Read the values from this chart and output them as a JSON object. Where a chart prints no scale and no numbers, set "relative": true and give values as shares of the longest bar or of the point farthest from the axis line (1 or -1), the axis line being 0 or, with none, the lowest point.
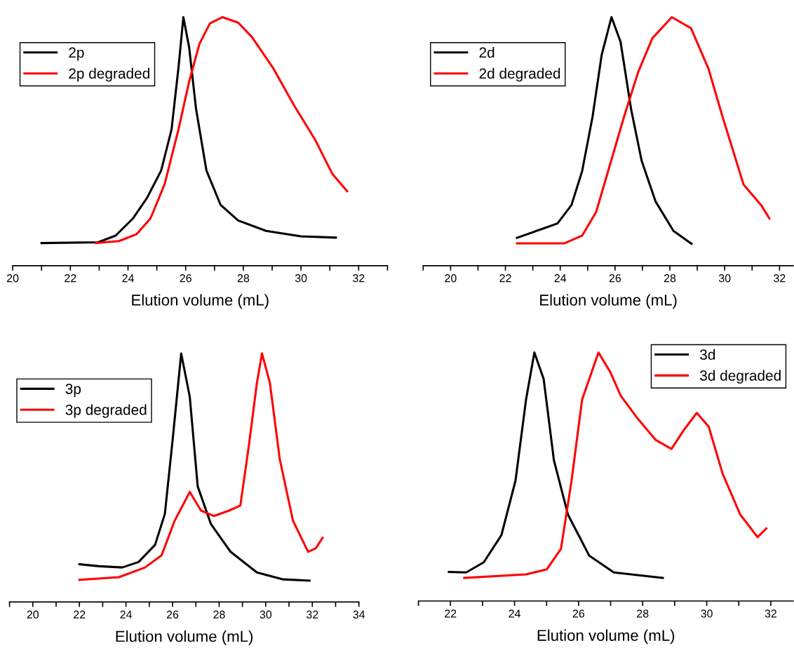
{
  "chart_data": [
    {
      "type": "line",
      "relative": true,
      "xlabel": "Elution volume (mL)",
      "xlim": [
        20,
        33
      ],
      "xticks": [
        20,
        {
          "value": 21,
          "label": null
        },
        22,
        {
          "value": 23,
          "label": null
        },
        24,
        {
          "value": 25,
          "label": null
        },
        26,
        {
          "value": 27,
          "label": null
        },
        28,
        {
          "value": 29,
          "label": null
        },
        30,
        {
          "value": 31,
          "label": null
        },
        32,
        {
          "value": 33,
          "label": null
        }
      ],
      "legend": "top left",
      "grid": false,
      "tick_labels": "x",
      "series": [
        {
          "name": "2p",
          "color": "#000000",
          "x": [
            21.0,
            22.96,
            23.57,
            24.17,
            24.66,
            25.15,
            25.51,
            25.75,
            25.92,
            26.12,
            26.36,
            26.72,
            27.21,
            27.82,
            28.79,
            30.0,
            31.21
          ],
          "values": [
            0.091,
            0.094,
            0.121,
            0.19,
            0.273,
            0.383,
            0.548,
            0.796,
            1.0,
            0.879,
            0.631,
            0.383,
            0.245,
            0.182,
            0.14,
            0.118,
            0.113
          ]
        },
        {
          "name": "2p degraded",
          "color": "#ff0000",
          "x": [
            22.89,
            23.69,
            24.3,
            24.78,
            25.27,
            25.75,
            26.12,
            26.48,
            26.84,
            27.28,
            27.82,
            28.3,
            29.03,
            29.76,
            30.49,
            31.09,
            31.6
          ],
          "values": [
            0.091,
            0.099,
            0.127,
            0.19,
            0.328,
            0.548,
            0.741,
            0.893,
            0.975,
            1.0,
            0.978,
            0.92,
            0.796,
            0.645,
            0.507,
            0.369,
            0.3
          ]
        }
      ]
    },
    {
      "type": "line",
      "relative": true,
      "xlabel": "Elution volume (mL)",
      "xlim": [
        19,
        32.5
      ],
      "xticks": [
        {
          "value": 19,
          "label": null
        },
        20,
        {
          "value": 21,
          "label": null
        },
        22,
        {
          "value": 23,
          "label": null
        },
        24,
        {
          "value": 25,
          "label": null
        },
        26,
        {
          "value": 27,
          "label": null
        },
        28,
        {
          "value": 29,
          "label": null
        },
        30,
        {
          "value": 31,
          "label": null
        },
        32
      ],
      "legend": "top left",
      "grid": false,
      "tick_labels": "x",
      "series": [
        {
          "name": "2d",
          "color": "#000000",
          "x": [
            22.42,
            23.26,
            23.9,
            24.41,
            24.8,
            25.18,
            25.51,
            25.87,
            26.2,
            26.59,
            26.97,
            27.48,
            28.13,
            28.79
          ],
          "values": [
            0.112,
            0.145,
            0.17,
            0.244,
            0.381,
            0.6,
            0.847,
            1.0,
            0.901,
            0.627,
            0.422,
            0.258,
            0.14,
            0.088
          ]
        },
        {
          "name": "2d degraded",
          "color": "#ff0000",
          "x": [
            22.42,
            24.16,
            24.8,
            25.31,
            25.82,
            26.33,
            26.84,
            27.36,
            28.07,
            28.77,
            29.41,
            29.92,
            30.69,
            31.33,
            31.63
          ],
          "values": [
            0.09,
            0.09,
            0.121,
            0.216,
            0.408,
            0.6,
            0.778,
            0.915,
            1.0,
            0.956,
            0.792,
            0.6,
            0.326,
            0.244,
            0.19
          ]
        }
      ]
    },
    {
      "type": "line",
      "relative": true,
      "xlabel": "Elution volume (mL)",
      "xlim": [
        19,
        34
      ],
      "xticks": [
        {
          "value": 19,
          "label": null
        },
        20,
        {
          "value": 21,
          "label": null
        },
        22,
        {
          "value": 23,
          "label": null
        },
        24,
        {
          "value": 25,
          "label": null
        },
        26,
        {
          "value": 27,
          "label": null
        },
        28,
        {
          "value": 29,
          "label": null
        },
        30,
        {
          "value": 31,
          "label": null
        },
        32,
        {
          "value": 33,
          "label": null
        },
        34
      ],
      "legend": "top left",
      "grid": false,
      "tick_labels": "x",
      "series": [
        {
          "name": "3p",
          "color": "#000000",
          "x": [
            22.0,
            22.85,
            23.84,
            24.54,
            25.25,
            25.67,
            26.01,
            26.37,
            26.74,
            27.08,
            27.65,
            28.49,
            29.62,
            30.75,
            31.88
          ],
          "values": [
            0.152,
            0.144,
            0.139,
            0.161,
            0.23,
            0.355,
            0.659,
            1.0,
            0.825,
            0.465,
            0.313,
            0.202,
            0.119,
            0.091,
            0.086
          ]
        },
        {
          "name": "3p degraded",
          "color": "#ff0000",
          "x": [
            22.0,
            23.7,
            24.82,
            25.53,
            26.09,
            26.74,
            27.22,
            27.78,
            28.43,
            28.91,
            29.28,
            29.62,
            29.84,
            30.18,
            30.6,
            31.17,
            31.82,
            32.15,
            32.44
          ],
          "values": [
            0.089,
            0.1,
            0.139,
            0.188,
            0.327,
            0.443,
            0.368,
            0.346,
            0.368,
            0.388,
            0.632,
            0.881,
            1.0,
            0.881,
            0.576,
            0.327,
            0.202,
            0.216,
            0.258
          ]
        }
      ]
    },
    {
      "type": "line",
      "relative": true,
      "xlabel": "Elution volume (mL)",
      "xlim": [
        21,
        32.7
      ],
      "xticks": [
        {
          "value": 21,
          "label": null
        },
        22,
        {
          "value": 23,
          "label": null
        },
        24,
        {
          "value": 25,
          "label": null
        },
        26,
        {
          "value": 27,
          "label": null
        },
        28,
        {
          "value": 29,
          "label": null
        },
        30,
        {
          "value": 31,
          "label": null
        },
        32
      ],
      "legend": "top right",
      "grid": false,
      "tick_labels": "x",
      "series": [
        {
          "name": "3d",
          "color": "#000000",
          "x": [
            21.95,
            22.49,
            23.04,
            23.59,
            24.03,
            24.36,
            24.62,
            24.91,
            25.23,
            25.67,
            26.33,
            27.1,
            28.63
          ],
          "values": [
            0.117,
            0.115,
            0.156,
            0.265,
            0.484,
            0.811,
            1.0,
            0.893,
            0.566,
            0.347,
            0.183,
            0.115,
            0.093
          ]
        },
        {
          "name": "3d degraded",
          "color": "#ff0000",
          "x": [
            22.43,
            24.36,
            25.01,
            25.45,
            25.78,
            26.11,
            26.62,
            26.99,
            27.32,
            27.87,
            28.41,
            28.9,
            29.29,
            29.69,
            30.06,
            30.5,
            31.05,
            31.59,
            31.86
          ],
          "values": [
            0.093,
            0.107,
            0.128,
            0.21,
            0.484,
            0.811,
            1.0,
            0.921,
            0.825,
            0.73,
            0.648,
            0.612,
            0.689,
            0.757,
            0.702,
            0.511,
            0.347,
            0.257,
            0.292
          ]
        }
      ]
    }
  ]
}
